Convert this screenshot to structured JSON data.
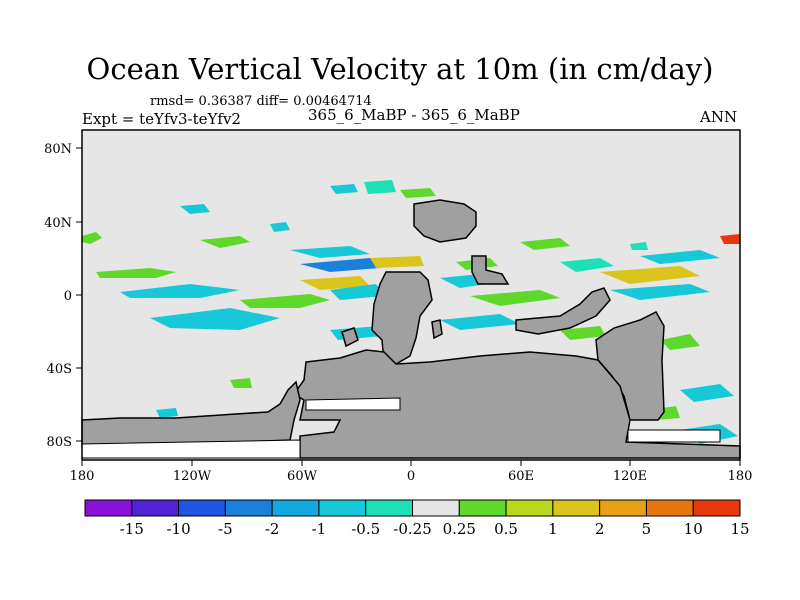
{
  "title": "Ocean Vertical Velocity at 10m (in cm/day)",
  "stats": {
    "rmsd": "rmsd= 0.36387 diff= 0.00464714"
  },
  "labels": {
    "left": "Expt = teYfv3-teYfv2",
    "center": "365_6_MaBP - 365_6_MaBP",
    "right": "ANN"
  },
  "map": {
    "x_ticks": [
      "180",
      "120W",
      "60W",
      "0",
      "60E",
      "120E",
      "180"
    ],
    "y_ticks": [
      "80N",
      "40N",
      "0",
      "40S",
      "80S"
    ]
  },
  "colorbar": {
    "labels": [
      "-15",
      "-10",
      "-5",
      "-2",
      "-1",
      "-0.5",
      "-0.25",
      "0.25",
      "0.5",
      "1",
      "2",
      "5",
      "10",
      "15"
    ],
    "colors": [
      "#8a12d8",
      "#4f22d6",
      "#1f55e0",
      "#1a80dc",
      "#12a8e0",
      "#16c8d8",
      "#1ee0b6",
      "#e6e6e6",
      "#5ed82a",
      "#b8d81e",
      "#dac51c",
      "#e6a016",
      "#e6760e",
      "#e63a0c"
    ]
  },
  "colors": {
    "background": "#e6e6e6",
    "land": "#a0a0a0",
    "zero_band": "#e6e6e6"
  }
}
